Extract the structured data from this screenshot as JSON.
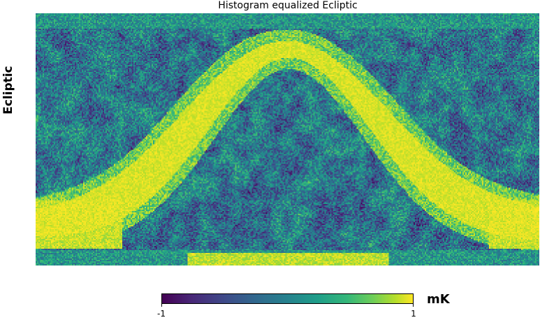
{
  "figure": {
    "title": "Histogram equalized Ecliptic",
    "side_label": "Ecliptic",
    "colorbar": {
      "unit": "mK",
      "min_label": "-1",
      "max_label": "1",
      "colormap": "viridis",
      "colors": [
        "#440154",
        "#482878",
        "#3e4a89",
        "#31688e",
        "#26828e",
        "#1f9e89",
        "#35b779",
        "#6ece58",
        "#b5de2b",
        "#fde725"
      ]
    },
    "map": {
      "projection": "mollweide-style full-sky map in ecliptic coordinates",
      "feature": "bright galactic plane arc"
    }
  }
}
